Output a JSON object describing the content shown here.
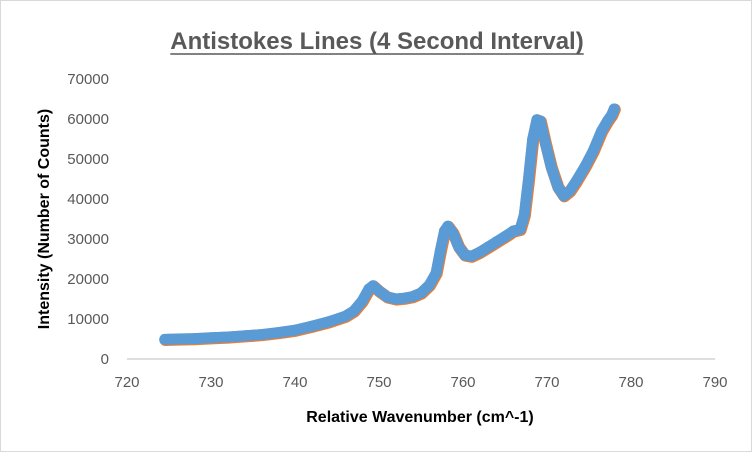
{
  "chart_data": {
    "type": "scatter",
    "title": "Antistokes Lines (4 Second Interval)",
    "xlabel": "Relative Wavenumber (cm^-1)",
    "ylabel": "Intensity (Number of Counts)",
    "xlim": [
      720,
      790
    ],
    "ylim": [
      0,
      70000
    ],
    "x_ticks": [
      720,
      730,
      740,
      750,
      760,
      770,
      780,
      790
    ],
    "y_ticks": [
      0,
      10000,
      20000,
      30000,
      40000,
      50000,
      60000,
      70000
    ],
    "grid": false,
    "legend": "none",
    "series": [
      {
        "color": "#5B9BD5",
        "underlay_color": "#ED7D31",
        "points": [
          [
            724.5,
            4900
          ],
          [
            726,
            5000
          ],
          [
            728,
            5100
          ],
          [
            730,
            5300
          ],
          [
            732,
            5500
          ],
          [
            734,
            5800
          ],
          [
            736,
            6100
          ],
          [
            738,
            6600
          ],
          [
            740,
            7200
          ],
          [
            742,
            8200
          ],
          [
            744,
            9300
          ],
          [
            746,
            10700
          ],
          [
            747,
            12000
          ],
          [
            748,
            14500
          ],
          [
            748.8,
            17500
          ],
          [
            749.3,
            18300
          ],
          [
            750,
            17000
          ],
          [
            751,
            15500
          ],
          [
            752,
            15000
          ],
          [
            753,
            15200
          ],
          [
            754,
            15600
          ],
          [
            755,
            16500
          ],
          [
            756,
            18500
          ],
          [
            756.8,
            21500
          ],
          [
            757.3,
            27000
          ],
          [
            757.8,
            32000
          ],
          [
            758.2,
            33200
          ],
          [
            758.8,
            31500
          ],
          [
            759.5,
            28000
          ],
          [
            760.2,
            26000
          ],
          [
            761,
            25700
          ],
          [
            762,
            26700
          ],
          [
            763,
            28000
          ],
          [
            764,
            29300
          ],
          [
            765,
            30600
          ],
          [
            766,
            32000
          ],
          [
            766.8,
            32400
          ],
          [
            767.3,
            36000
          ],
          [
            767.8,
            45000
          ],
          [
            768.3,
            55000
          ],
          [
            768.8,
            59800
          ],
          [
            769.2,
            59500
          ],
          [
            769.8,
            54000
          ],
          [
            770.5,
            48000
          ],
          [
            771.3,
            43000
          ],
          [
            772,
            40800
          ],
          [
            772.7,
            42000
          ],
          [
            773.5,
            44500
          ],
          [
            774.5,
            48000
          ],
          [
            775.5,
            52000
          ],
          [
            776.5,
            57000
          ],
          [
            777.2,
            59500
          ],
          [
            777.7,
            61000
          ],
          [
            778,
            62500
          ]
        ]
      }
    ]
  }
}
